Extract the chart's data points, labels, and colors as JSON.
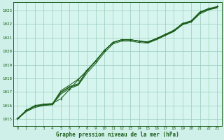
{
  "title": "Graphe pression niveau de la mer (hPa)",
  "bg_color": "#cff0e8",
  "plot_bg_color": "#d6f5ee",
  "grid_color": "#99ccbb",
  "line_color": "#1a5c1a",
  "xlim": [
    -0.5,
    23.5
  ],
  "ylim": [
    1014.5,
    1023.6
  ],
  "yticks": [
    1015,
    1016,
    1017,
    1018,
    1019,
    1020,
    1021,
    1022,
    1023
  ],
  "xticks": [
    0,
    1,
    2,
    3,
    4,
    5,
    6,
    7,
    8,
    9,
    10,
    11,
    12,
    13,
    14,
    15,
    16,
    17,
    18,
    19,
    20,
    21,
    22,
    23
  ],
  "line1": [
    1015.0,
    1015.55,
    1015.85,
    1016.0,
    1016.05,
    1016.85,
    1017.25,
    1017.5,
    1018.4,
    1019.1,
    1019.9,
    1020.55,
    1020.75,
    1020.75,
    1020.65,
    1020.6,
    1020.85,
    1021.15,
    1021.45,
    1021.95,
    1022.15,
    1022.75,
    1023.05,
    1023.2
  ],
  "line2": [
    1015.0,
    1015.6,
    1015.95,
    1016.05,
    1016.1,
    1016.95,
    1017.35,
    1017.55,
    1018.55,
    1019.25,
    1020.05,
    1020.65,
    1020.85,
    1020.85,
    1020.75,
    1020.65,
    1020.9,
    1021.2,
    1021.5,
    1022.0,
    1022.2,
    1022.85,
    1023.1,
    1023.25
  ],
  "line3_hump": [
    1015.0,
    1015.6,
    1015.95,
    1016.05,
    1016.1,
    1017.0,
    1017.4,
    1017.6,
    1018.6,
    1019.3,
    1020.05,
    1020.65,
    1020.85,
    1020.85,
    1020.75,
    1020.65,
    1020.9,
    1021.2,
    1021.5,
    1022.0,
    1022.2,
    1022.85,
    1023.1,
    1023.25
  ],
  "line4_steep": [
    1015.0,
    1015.6,
    1015.95,
    1016.05,
    1016.1,
    1017.1,
    1017.5,
    1017.95,
    1018.55,
    1019.3,
    1020.05,
    1020.65,
    1020.85,
    1020.85,
    1020.75,
    1020.65,
    1020.9,
    1021.2,
    1021.5,
    1022.0,
    1022.2,
    1022.85,
    1023.1,
    1023.25
  ],
  "line_hump_with_markers": [
    1015.05,
    1015.65,
    1016.0,
    1016.1,
    1016.15,
    1016.5,
    1017.2,
    1017.9,
    1018.6,
    1019.25,
    1020.05,
    1020.65,
    1020.85,
    1020.85,
    1020.75,
    1020.7,
    1020.95,
    1021.25,
    1021.55,
    1022.05,
    1022.25,
    1022.9,
    1023.15,
    1023.3
  ]
}
